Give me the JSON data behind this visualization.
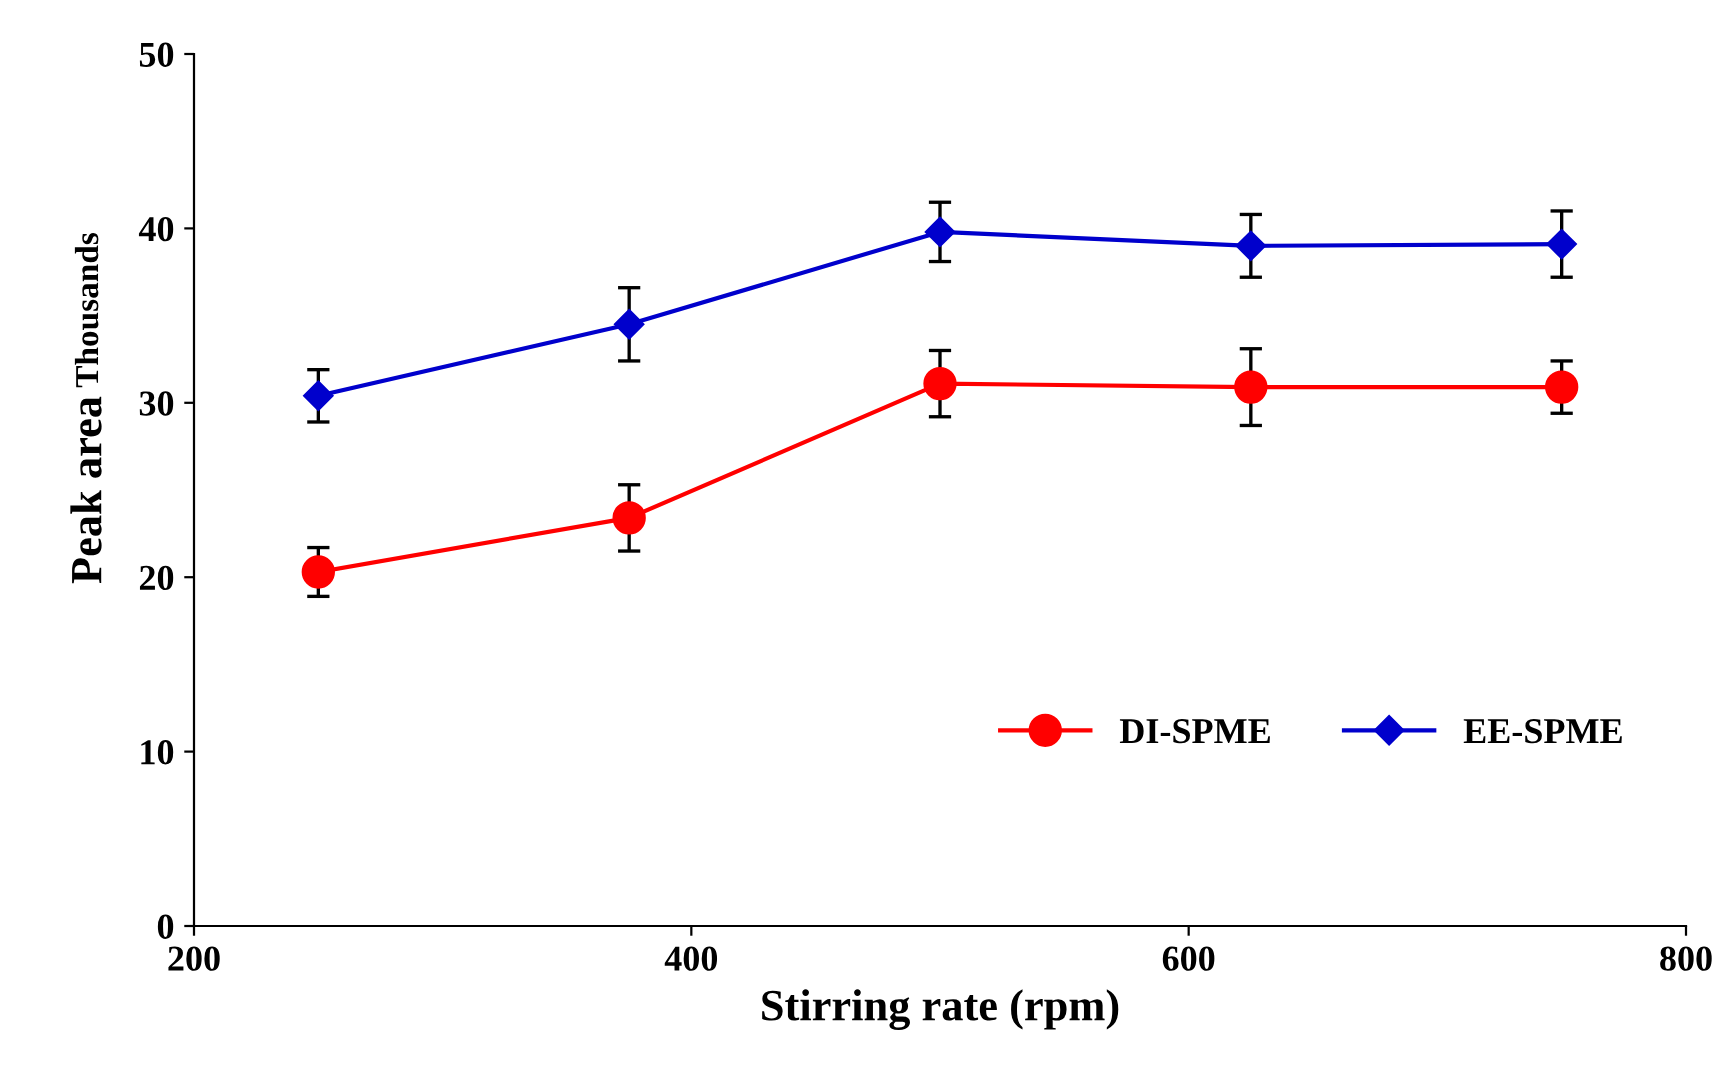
{
  "chart_data": {
    "type": "line",
    "xlabel": "Stirring rate (rpm)",
    "ylabel": "Peak area",
    "annotations": [
      "Thousands"
    ],
    "x": [
      250,
      375,
      500,
      625,
      750
    ],
    "series": [
      {
        "name": "DI-SPME",
        "color": "#ff0000",
        "marker": "circle",
        "values": [
          20.3,
          23.4,
          31.1,
          30.9,
          30.9
        ],
        "errors": [
          1.4,
          1.9,
          1.9,
          2.2,
          1.5
        ]
      },
      {
        "name": "EE-SPME",
        "color": "#0000cc",
        "marker": "diamond",
        "values": [
          30.4,
          34.5,
          39.8,
          39.0,
          39.1
        ],
        "errors": [
          1.5,
          2.1,
          1.7,
          1.8,
          1.9
        ]
      }
    ],
    "xlim": [
      200,
      800
    ],
    "xticks": [
      200,
      400,
      600,
      800
    ],
    "ylim": [
      0,
      50
    ],
    "yticks": [
      0,
      10,
      20,
      30,
      40,
      50
    ],
    "grid": false,
    "legend": "right",
    "line_style": "solid"
  }
}
